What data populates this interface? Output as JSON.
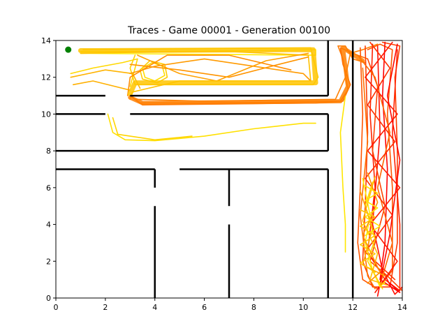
{
  "chart_data": {
    "type": "line",
    "title": "Traces - Game 00001 - Generation 00100",
    "xlabel": "",
    "ylabel": "",
    "xlim": [
      0,
      14
    ],
    "ylim": [
      0,
      14
    ],
    "x_ticks": [
      "0",
      "2",
      "4",
      "6",
      "8",
      "10",
      "12",
      "14"
    ],
    "y_ticks": [
      "0",
      "2",
      "4",
      "6",
      "8",
      "10",
      "12",
      "14"
    ],
    "grid": false,
    "legend": "none",
    "start_marker": {
      "x": 0.5,
      "y": 13.5,
      "color": "#008000"
    },
    "walls": [
      [
        [
          0,
          11
        ],
        [
          2,
          11
        ]
      ],
      [
        [
          3,
          11
        ],
        [
          11,
          11
        ]
      ],
      [
        [
          0,
          10
        ],
        [
          2,
          10
        ]
      ],
      [
        [
          3,
          10
        ],
        [
          11,
          10
        ]
      ],
      [
        [
          0,
          8
        ],
        [
          11,
          8
        ]
      ],
      [
        [
          11,
          8
        ],
        [
          11,
          10
        ]
      ],
      [
        [
          11,
          11
        ],
        [
          11,
          14
        ]
      ],
      [
        [
          0,
          7
        ],
        [
          4,
          7
        ]
      ],
      [
        [
          5,
          7
        ],
        [
          11,
          7
        ]
      ],
      [
        [
          4,
          7
        ],
        [
          4,
          6
        ]
      ],
      [
        [
          4,
          5
        ],
        [
          4,
          0
        ]
      ],
      [
        [
          7,
          7
        ],
        [
          7,
          5
        ]
      ],
      [
        [
          7,
          4
        ],
        [
          7,
          0
        ]
      ],
      [
        [
          11,
          7
        ],
        [
          11,
          0
        ]
      ],
      [
        [
          12,
          14
        ],
        [
          12,
          0
        ]
      ]
    ],
    "series": [
      {
        "color": "#ffea00",
        "values": [
          [
            1.0,
            13.4
          ],
          [
            4,
            13.4
          ],
          [
            8,
            13.45
          ],
          [
            10.5,
            13.5
          ],
          [
            10.5,
            13.2
          ],
          [
            6,
            13.25
          ],
          [
            1.0,
            13.3
          ]
        ]
      },
      {
        "color": "#ffd000",
        "values": [
          [
            1.1,
            13.5
          ],
          [
            5,
            13.55
          ],
          [
            10.3,
            13.6
          ],
          [
            10.6,
            12
          ],
          [
            10.4,
            11.6
          ],
          [
            6,
            11.6
          ],
          [
            3.2,
            11.6
          ],
          [
            3.0,
            12.5
          ],
          [
            3.2,
            13.2
          ]
        ]
      },
      {
        "color": "#ffc000",
        "values": [
          [
            1.0,
            13.3
          ],
          [
            3,
            13.35
          ],
          [
            7,
            13.4
          ],
          [
            10.2,
            13.2
          ],
          [
            10.3,
            11.8
          ],
          [
            5,
            11.8
          ],
          [
            3.1,
            11.2
          ],
          [
            3.0,
            10.8
          ]
        ]
      },
      {
        "color": "#ffd800",
        "values": [
          [
            0.6,
            12.2
          ],
          [
            1.5,
            12.5
          ],
          [
            2.7,
            12.8
          ],
          [
            3.3,
            13.0
          ],
          [
            3.0,
            11.5
          ]
        ]
      },
      {
        "color": "#ffb300",
        "values": [
          [
            0.6,
            12.0
          ],
          [
            2.0,
            12.4
          ],
          [
            3.1,
            12.2
          ],
          [
            3.4,
            11.4
          ]
        ]
      },
      {
        "color": "#ffb000",
        "values": [
          [
            0.7,
            11.6
          ],
          [
            1.5,
            11.8
          ],
          [
            3.0,
            11.3
          ]
        ]
      },
      {
        "color": "#ffdd00",
        "values": [
          [
            3.5,
            12.5
          ],
          [
            3.6,
            12.0
          ],
          [
            4.0,
            11.8
          ],
          [
            4.4,
            12.1
          ],
          [
            4.3,
            12.6
          ],
          [
            3.9,
            12.8
          ],
          [
            3.5,
            12.5
          ]
        ]
      },
      {
        "color": "#ffcc00",
        "values": [
          [
            3.4,
            12.4
          ],
          [
            3.5,
            11.9
          ],
          [
            4.1,
            11.7
          ],
          [
            4.5,
            12.0
          ],
          [
            4.4,
            12.7
          ],
          [
            3.8,
            12.9
          ],
          [
            3.4,
            12.4
          ]
        ]
      },
      {
        "color": "#ff9a00",
        "values": [
          [
            3.0,
            12.2
          ],
          [
            4,
            12.6
          ],
          [
            6,
            13.0
          ],
          [
            8,
            12.6
          ],
          [
            10,
            12.2
          ],
          [
            10.3,
            11.8
          ]
        ]
      },
      {
        "color": "#ff9400",
        "values": [
          [
            3.0,
            12.7
          ],
          [
            5,
            12.4
          ],
          [
            7,
            12.0
          ],
          [
            9,
            12.7
          ],
          [
            10.2,
            13.1
          ]
        ]
      },
      {
        "color": "#ffa000",
        "values": [
          [
            3.3,
            13.2
          ],
          [
            5,
            12.2
          ],
          [
            6.5,
            11.8
          ],
          [
            8.5,
            12.9
          ],
          [
            10.2,
            13.3
          ]
        ]
      },
      {
        "color": "#ff8c00",
        "values": [
          [
            2.9,
            11.0
          ],
          [
            3.0,
            12.0
          ],
          [
            4.5,
            13.2
          ],
          [
            7,
            13.2
          ],
          [
            9.5,
            12.4
          ]
        ]
      },
      {
        "color": "#ff7a00",
        "values": [
          [
            3.0,
            11.0
          ],
          [
            3.4,
            10.6
          ],
          [
            6,
            10.6
          ],
          [
            9,
            10.65
          ],
          [
            11.5,
            10.7
          ],
          [
            11.8,
            11.3
          ],
          [
            11.6,
            13.0
          ],
          [
            11.4,
            13.7
          ],
          [
            11.7,
            13.7
          ],
          [
            12.0,
            13.0
          ],
          [
            12.5,
            12.8
          ]
        ]
      },
      {
        "color": "#ff6a00",
        "values": [
          [
            3.1,
            10.9
          ],
          [
            3.5,
            10.5
          ],
          [
            7,
            10.55
          ],
          [
            10.5,
            10.6
          ],
          [
            11.6,
            10.7
          ],
          [
            11.9,
            11.6
          ],
          [
            11.6,
            12.7
          ],
          [
            11.5,
            13.6
          ],
          [
            12.2,
            13.2
          ],
          [
            12.6,
            13.0
          ]
        ]
      },
      {
        "color": "#ff8000",
        "values": [
          [
            3.2,
            10.8
          ],
          [
            6,
            10.7
          ],
          [
            11.3,
            10.8
          ],
          [
            11.7,
            12.0
          ],
          [
            11.9,
            13.3
          ],
          [
            12.4,
            13.5
          ],
          [
            13.0,
            13.8
          ]
        ]
      },
      {
        "color": "#ffe000",
        "values": [
          [
            2.1,
            10.0
          ],
          [
            2.3,
            9.0
          ],
          [
            2.8,
            8.6
          ],
          [
            4,
            8.55
          ],
          [
            6,
            8.8
          ],
          [
            8,
            9.2
          ],
          [
            10,
            9.5
          ],
          [
            10.5,
            9.5
          ]
        ]
      },
      {
        "color": "#ffd400",
        "values": [
          [
            2.3,
            9.8
          ],
          [
            2.5,
            8.9
          ],
          [
            4,
            8.6
          ],
          [
            5.5,
            8.8
          ]
        ]
      },
      {
        "color": "#ffe600",
        "values": [
          [
            11.7,
            11.0
          ],
          [
            11.5,
            9.0
          ],
          [
            11.6,
            6.0
          ],
          [
            11.7,
            4.0
          ],
          [
            11.7,
            2.5
          ]
        ]
      },
      {
        "color": "#ff5500",
        "values": [
          [
            12.3,
            13.6
          ],
          [
            12.4,
            10
          ],
          [
            12.3,
            6
          ],
          [
            12.2,
            3
          ],
          [
            12.4,
            1.0
          ],
          [
            13.0,
            0.5
          ],
          [
            13.6,
            1.5
          ],
          [
            13.6,
            6
          ],
          [
            13.4,
            10
          ],
          [
            13.6,
            13.5
          ],
          [
            13.1,
            13.8
          ],
          [
            12.6,
            13.5
          ]
        ]
      },
      {
        "color": "#ff3c00",
        "values": [
          [
            12.5,
            13.7
          ],
          [
            12.6,
            9
          ],
          [
            12.5,
            5
          ],
          [
            12.4,
            2
          ],
          [
            12.8,
            0.6
          ],
          [
            13.5,
            0.6
          ],
          [
            13.8,
            3
          ],
          [
            13.8,
            8
          ],
          [
            13.7,
            12
          ],
          [
            13.9,
            13.7
          ],
          [
            13.2,
            13.9
          ]
        ]
      },
      {
        "color": "#ff2200",
        "values": [
          [
            12.8,
            13.8
          ],
          [
            12.7,
            10
          ],
          [
            12.9,
            6
          ],
          [
            12.6,
            2.5
          ],
          [
            13.3,
            1.0
          ],
          [
            13.9,
            0.4
          ],
          [
            13.9,
            4
          ],
          [
            13.6,
            9
          ],
          [
            13.8,
            13.5
          ]
        ]
      },
      {
        "color": "#ff1000",
        "values": [
          [
            13.0,
            13.7
          ],
          [
            13.1,
            9
          ],
          [
            12.8,
            4
          ],
          [
            13.2,
            1.5
          ],
          [
            13.7,
            0.2
          ],
          [
            14.0,
            0.6
          ]
        ]
      },
      {
        "color": "#ff0000",
        "values": [
          [
            13.3,
            13.9
          ],
          [
            13.2,
            11
          ],
          [
            13.4,
            7
          ],
          [
            13.3,
            3
          ],
          [
            13.1,
            1.0
          ],
          [
            13.9,
            0.3
          ],
          [
            13.5,
            0.8
          ]
        ]
      },
      {
        "color": "#ff4400",
        "values": [
          [
            12.6,
            13.0
          ],
          [
            13.0,
            11.5
          ],
          [
            12.8,
            8
          ],
          [
            13.3,
            5
          ],
          [
            12.7,
            2
          ],
          [
            13.4,
            1.2
          ],
          [
            14.0,
            0.4
          ]
        ]
      },
      {
        "color": "#ff6600",
        "values": [
          [
            12.2,
            13.2
          ],
          [
            12.9,
            12.0
          ],
          [
            13.5,
            9
          ],
          [
            13.0,
            6
          ],
          [
            13.6,
            3
          ],
          [
            13.1,
            0.7
          ]
        ]
      },
      {
        "color": "#ff2f00",
        "values": [
          [
            12.7,
            13.9
          ],
          [
            13.5,
            12.5
          ],
          [
            12.6,
            10.5
          ],
          [
            13.7,
            8.5
          ],
          [
            12.5,
            6.5
          ],
          [
            13.6,
            4.5
          ],
          [
            12.5,
            2.5
          ],
          [
            13.7,
            1.0
          ]
        ]
      },
      {
        "color": "#ff1a00",
        "values": [
          [
            13.6,
            13.9
          ],
          [
            12.5,
            12
          ],
          [
            13.8,
            10
          ],
          [
            12.6,
            8
          ],
          [
            13.9,
            6
          ],
          [
            12.7,
            4
          ],
          [
            13.8,
            2
          ],
          [
            12.9,
            0.3
          ]
        ]
      },
      {
        "color": "#ff0800",
        "values": [
          [
            13.8,
            13.8
          ],
          [
            13.4,
            11
          ],
          [
            13.9,
            7.5
          ],
          [
            13.5,
            3.5
          ],
          [
            13.0,
            0.1
          ]
        ]
      },
      {
        "color": "#ff7000",
        "values": [
          [
            12.4,
            12.5
          ],
          [
            12.6,
            8.5
          ],
          [
            12.3,
            4.5
          ],
          [
            12.6,
            1.2
          ],
          [
            12.9,
            0.5
          ]
        ]
      },
      {
        "color": "#ffee00",
        "values": [
          [
            12.4,
            6.5
          ],
          [
            12.7,
            4.5
          ],
          [
            12.5,
            3
          ],
          [
            12.8,
            1.5
          ],
          [
            13.1,
            0.6
          ],
          [
            13.3,
            0.9
          ]
        ]
      },
      {
        "color": "#ffd500",
        "values": [
          [
            12.8,
            6.3
          ],
          [
            12.5,
            5
          ],
          [
            12.9,
            3.2
          ],
          [
            12.6,
            2
          ],
          [
            13.2,
            0.5
          ]
        ]
      },
      {
        "color": "#ffbb00",
        "values": [
          [
            12.9,
            6.6
          ],
          [
            12.4,
            4.2
          ],
          [
            13.0,
            2.4
          ],
          [
            12.7,
            1.0
          ],
          [
            13.4,
            0.7
          ]
        ]
      },
      {
        "color": "#ffa500",
        "values": [
          [
            12.3,
            5.8
          ],
          [
            12.8,
            3.8
          ],
          [
            12.4,
            1.8
          ],
          [
            13.3,
            1.2
          ]
        ]
      },
      {
        "color": "#ff9000",
        "values": [
          [
            12.6,
            6.8
          ],
          [
            13.0,
            5.2
          ],
          [
            12.4,
            3.4
          ],
          [
            13.1,
            1.4
          ],
          [
            12.6,
            0.8
          ]
        ]
      },
      {
        "color": "#ffc800",
        "values": [
          [
            12.3,
            4.8
          ],
          [
            12.9,
            4.4
          ],
          [
            12.3,
            3.9
          ],
          [
            12.9,
            3.4
          ],
          [
            12.3,
            2.9
          ],
          [
            12.9,
            2.4
          ],
          [
            12.3,
            1.9
          ],
          [
            12.9,
            1.4
          ]
        ]
      },
      {
        "color": "#ffe400",
        "values": [
          [
            12.5,
            6.1
          ],
          [
            13.0,
            5.7
          ],
          [
            12.5,
            5.3
          ],
          [
            13.0,
            4.9
          ],
          [
            12.5,
            4.4
          ],
          [
            13.1,
            3.9
          ],
          [
            12.5,
            3.4
          ]
        ]
      }
    ]
  }
}
